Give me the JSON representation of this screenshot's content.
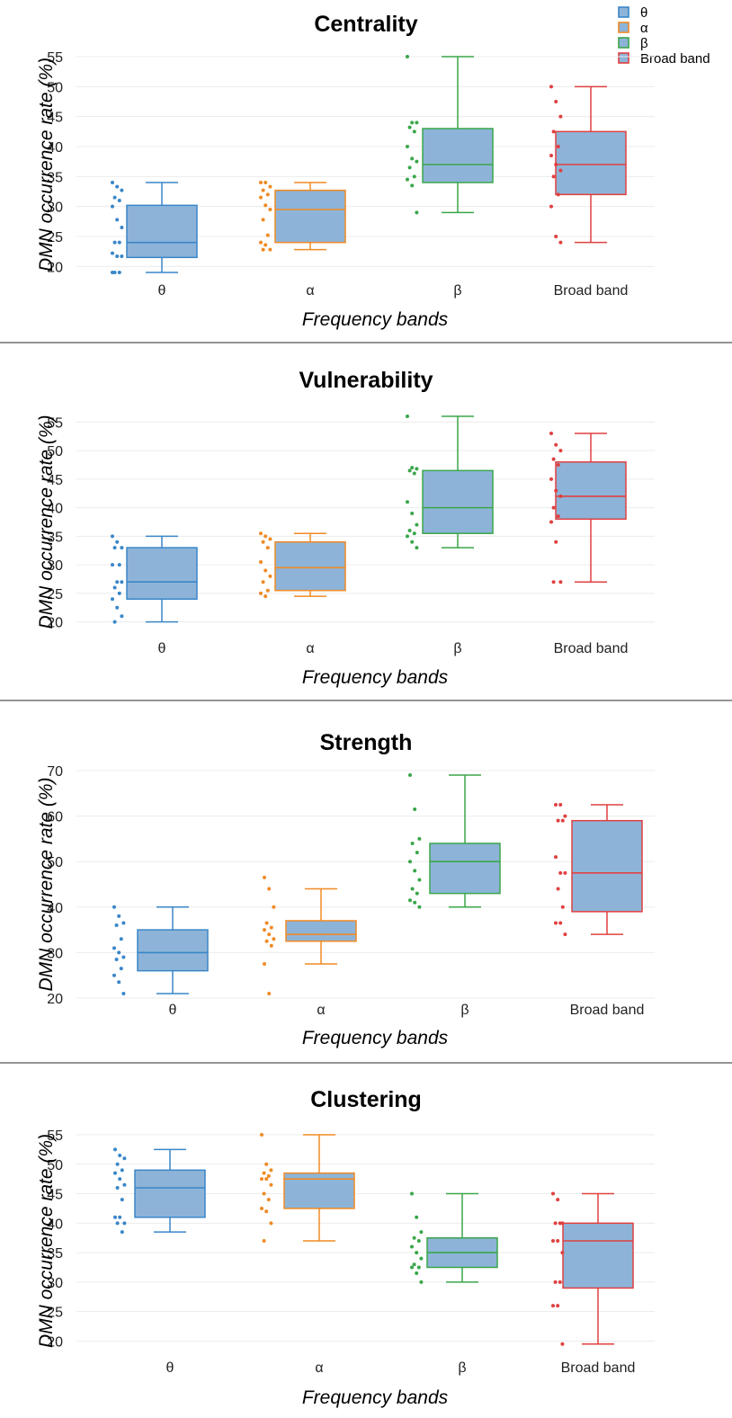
{
  "legend": {
    "position": "top-right",
    "items": [
      {
        "label": "θ",
        "color": "#3a86c8"
      },
      {
        "label": "α",
        "color": "#f08a24"
      },
      {
        "label": "β",
        "color": "#3aa64a"
      },
      {
        "label": "Broad band",
        "color": "#e04040"
      }
    ]
  },
  "box_fill": "#8db4d8",
  "chart_data": [
    {
      "type": "box",
      "title": "Centrality",
      "xlabel": "Frequency bands",
      "ylabel": "DMN occurrence rate (%)",
      "ylim": [
        19,
        55
      ],
      "yticks": [
        20,
        25,
        30,
        35,
        40,
        45,
        50,
        55
      ],
      "grid": true,
      "categories": [
        "θ",
        "α",
        "β",
        "Broad band"
      ],
      "series": [
        {
          "color": "#3a86c8",
          "min": 19,
          "q1": 21.5,
          "median": 24,
          "q3": 30.2,
          "max": 34,
          "points": [
            34,
            33.3,
            32.7,
            31.5,
            31,
            30,
            27.8,
            26.5,
            24,
            24,
            22.2,
            21.7,
            21.7,
            19,
            19,
            19
          ]
        },
        {
          "color": "#f08a24",
          "min": 22.8,
          "q1": 24,
          "median": 29.5,
          "q3": 32.7,
          "max": 34,
          "points": [
            34,
            34,
            33.3,
            32.7,
            32,
            31.5,
            30.2,
            29.5,
            27.8,
            25.2,
            24,
            23.6,
            22.8,
            22.8
          ]
        },
        {
          "color": "#3aa64a",
          "min": 29,
          "q1": 34,
          "median": 37,
          "q3": 43,
          "max": 55,
          "points": [
            55,
            44,
            44,
            43.2,
            42.5,
            40,
            38,
            37.5,
            36.5,
            35,
            34.5,
            33.5,
            29
          ]
        },
        {
          "color": "#e04040",
          "min": 24,
          "q1": 32,
          "median": 37,
          "q3": 42.5,
          "max": 50,
          "points": [
            50,
            47.5,
            45,
            42.5,
            40,
            38.5,
            37,
            36,
            35,
            32,
            30,
            25,
            24
          ]
        }
      ]
    },
    {
      "type": "box",
      "title": "Vulnerability",
      "xlabel": "Frequency bands",
      "ylabel": "DMN occurrence rate (%)",
      "ylim": [
        19,
        56
      ],
      "yticks": [
        20,
        25,
        30,
        35,
        40,
        45,
        50,
        55
      ],
      "grid": true,
      "categories": [
        "θ",
        "α",
        "β",
        "Broad band"
      ],
      "series": [
        {
          "color": "#3a86c8",
          "min": 20,
          "q1": 24,
          "median": 27,
          "q3": 33,
          "max": 35,
          "points": [
            35,
            34,
            33,
            33,
            30,
            30,
            27,
            27,
            26,
            25,
            24,
            22.5,
            21,
            20
          ]
        },
        {
          "color": "#f08a24",
          "min": 24.5,
          "q1": 25.5,
          "median": 29.5,
          "q3": 34,
          "max": 35.5,
          "points": [
            35.5,
            35,
            34.5,
            34,
            33,
            30.5,
            29,
            28,
            27,
            25.5,
            25,
            24.5
          ]
        },
        {
          "color": "#3aa64a",
          "min": 33,
          "q1": 35.5,
          "median": 40,
          "q3": 46.5,
          "max": 56,
          "points": [
            56,
            47,
            46.8,
            46.5,
            46,
            41,
            39,
            37,
            36,
            35.5,
            35,
            34,
            33
          ]
        },
        {
          "color": "#e04040",
          "min": 27,
          "q1": 38,
          "median": 42,
          "q3": 48,
          "max": 53,
          "points": [
            53,
            51,
            50,
            48.5,
            47.5,
            45,
            43,
            42,
            40,
            38.5,
            37.5,
            34,
            27,
            27
          ]
        }
      ]
    },
    {
      "type": "box",
      "title": "Strength",
      "xlabel": "Frequency bands",
      "ylabel": "DMN occurrence rate (%)",
      "ylim": [
        20,
        70
      ],
      "yticks": [
        20,
        30,
        40,
        50,
        60,
        70
      ],
      "grid": true,
      "categories": [
        "θ",
        "α",
        "β",
        "Broad band"
      ],
      "series": [
        {
          "color": "#3a86c8",
          "min": 21,
          "q1": 26,
          "median": 30,
          "q3": 35,
          "max": 40,
          "points": [
            40,
            38,
            36.5,
            36,
            33,
            31,
            30,
            29,
            28.5,
            26.5,
            25,
            23.5,
            21
          ]
        },
        {
          "color": "#f08a24",
          "min": 27.5,
          "q1": 32.5,
          "median": 34,
          "q3": 37,
          "max": 44,
          "points": [
            46.5,
            44,
            40,
            36.5,
            35.5,
            35,
            34,
            33,
            32.5,
            31.5,
            27.5,
            21
          ]
        },
        {
          "color": "#3aa64a",
          "min": 40,
          "q1": 43,
          "median": 50,
          "q3": 54,
          "max": 69,
          "points": [
            69,
            61.5,
            55,
            54,
            52,
            50,
            48,
            46,
            44,
            43,
            41.5,
            41,
            40
          ]
        },
        {
          "color": "#e04040",
          "min": 34,
          "q1": 39,
          "median": 47.5,
          "q3": 59,
          "max": 62.5,
          "points": [
            62.5,
            62.5,
            60,
            59,
            59,
            51,
            47.5,
            47.5,
            44,
            40,
            36.5,
            36.5,
            34
          ]
        }
      ]
    },
    {
      "type": "box",
      "title": "Clustering",
      "xlabel": "Frequency bands",
      "ylabel": "DMN occurrence rate (%)",
      "ylim": [
        19,
        55
      ],
      "yticks": [
        20,
        25,
        30,
        35,
        40,
        45,
        50,
        55
      ],
      "grid": true,
      "categories": [
        "θ",
        "α",
        "β",
        "Broad band"
      ],
      "series": [
        {
          "color": "#3a86c8",
          "min": 38.5,
          "q1": 41,
          "median": 46,
          "q3": 49,
          "max": 52.5,
          "points": [
            52.5,
            51.5,
            51,
            50,
            49,
            48.5,
            47.5,
            46.5,
            46,
            44,
            41,
            41,
            40,
            40,
            38.5
          ]
        },
        {
          "color": "#f08a24",
          "min": 37,
          "q1": 42.5,
          "median": 47.5,
          "q3": 48.5,
          "max": 55,
          "points": [
            55,
            50,
            49,
            48.5,
            48,
            47.5,
            47.5,
            46.5,
            45,
            44,
            42.5,
            42,
            40,
            37
          ]
        },
        {
          "color": "#3aa64a",
          "min": 30,
          "q1": 32.5,
          "median": 35,
          "q3": 37.5,
          "max": 45,
          "points": [
            45,
            41,
            38.5,
            37.5,
            37,
            36,
            35,
            34,
            33,
            32.5,
            32.5,
            31.5,
            30
          ]
        },
        {
          "color": "#e04040",
          "min": 19.5,
          "q1": 29,
          "median": 37,
          "q3": 40,
          "max": 45,
          "points": [
            45,
            44,
            40,
            40,
            40,
            37,
            37,
            35,
            30,
            30,
            26,
            26,
            19.5
          ]
        }
      ]
    }
  ]
}
